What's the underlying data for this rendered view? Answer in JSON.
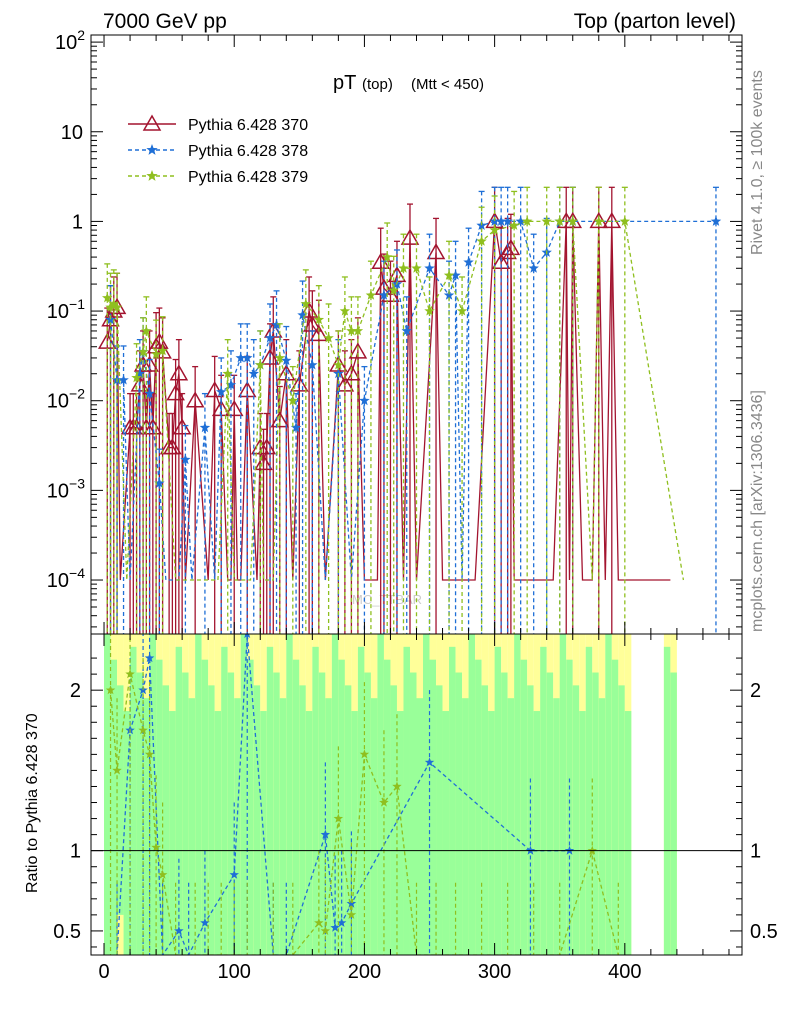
{
  "header": {
    "energy_label": "7000 GeV pp",
    "process_label": "Top (parton level)",
    "title_main": "pT",
    "title_sub": "(top)",
    "title_cut": "(Mtt < 450)"
  },
  "side": {
    "rivet_label": "Rivet 4.1.0, ≥ 100k events",
    "mcplots_label": "mcplots.cern.ch [arXiv:1306.3436]"
  },
  "watermark": "MC_TTBAR",
  "ratio_ylabel": "Ratio to Pythia 6.428 370",
  "colors": {
    "s370": "#a3142f",
    "s378": "#1f6fd6",
    "s379": "#8fbf1f",
    "band_yellow": "#ffff99",
    "band_green": "#99ff99"
  },
  "chart_data": [
    {
      "type": "line",
      "panel": "main",
      "title": "pT (top) (Mtt < 450)",
      "xlabel": "",
      "ylabel": "",
      "yscale": "log",
      "xlim": [
        -10,
        490
      ],
      "ylim": [
        2.5e-05,
        120
      ],
      "y_ticks": [
        {
          "value": 100,
          "base": "10",
          "exp": "2"
        },
        {
          "value": 10,
          "base": "10",
          "exp": ""
        },
        {
          "value": 1,
          "base": "1",
          "exp": ""
        },
        {
          "value": 0.1,
          "base": "10",
          "exp": "−1"
        },
        {
          "value": 0.01,
          "base": "10",
          "exp": "−2"
        },
        {
          "value": 0.001,
          "base": "10",
          "exp": "−3"
        },
        {
          "value": 0.0001,
          "base": "10",
          "exp": "−4"
        }
      ],
      "legend": [
        {
          "label": "Pythia 6.428 370",
          "color": "#a3142f",
          "marker": "triangle",
          "dash": "solid"
        },
        {
          "label": "Pythia 6.428 378",
          "color": "#1f6fd6",
          "marker": "star",
          "dash": "dashed"
        },
        {
          "label": "Pythia 6.428 379",
          "color": "#8fbf1f",
          "marker": "star",
          "dash": "dashed"
        }
      ],
      "legend_position": "top-left",
      "series": [
        {
          "name": "Pythia 6.428 370",
          "x": [
            2.5,
            5,
            7.5,
            10,
            12.5,
            20,
            22.5,
            25,
            27.5,
            30,
            32.5,
            35,
            37.5,
            40,
            42.5,
            45,
            50,
            52.5,
            55,
            57.5,
            60,
            62.5,
            70,
            80,
            85,
            90,
            95,
            97.5,
            100,
            102.5,
            105,
            110,
            117.5,
            120,
            122.5,
            125,
            127.5,
            130,
            135,
            140,
            145,
            150,
            157.5,
            160,
            165,
            170,
            180,
            185,
            190,
            195,
            200,
            210,
            212.5,
            215,
            220,
            225,
            230,
            235,
            240,
            255,
            260,
            265,
            270,
            285,
            300,
            305,
            310,
            312.5,
            315,
            320,
            335,
            345,
            355,
            357.5,
            360,
            367.5,
            375,
            380,
            385,
            390,
            395,
            435
          ],
          "values": [
            0.045,
            0.08,
            0.1,
            0.11,
            0.0001,
            0.005,
            0.005,
            0.005,
            0.015,
            0.025,
            0.005,
            0.025,
            0.005,
            0.04,
            0.045,
            0.035,
            0.003,
            0.003,
            0.012,
            0.02,
            0.005,
            0.0001,
            0.01,
            0.0001,
            0.013,
            0.008,
            0.0001,
            0.0001,
            0.008,
            0.0001,
            0.0001,
            0.013,
            0.0001,
            0.003,
            0.002,
            0.003,
            0.03,
            0.06,
            0.006,
            0.02,
            0.0001,
            0.015,
            0.1,
            0.07,
            0.055,
            0.0001,
            0.025,
            0.015,
            0.02,
            0.035,
            0.0001,
            0.0001,
            0.35,
            0.18,
            0.15,
            0.25,
            0.0001,
            0.65,
            0.0001,
            0.45,
            0.0001,
            0.0001,
            0.0001,
            0.0001,
            1,
            0.35,
            0.45,
            0.5,
            0.0001,
            0.0001,
            0.0001,
            0.0001,
            1,
            0.0001,
            1,
            0.0001,
            0.0001,
            1,
            0.0001,
            1,
            0.0001,
            0.0001
          ]
        },
        {
          "name": "Pythia 6.428 378",
          "x": [
            5,
            10,
            15,
            20,
            27.5,
            30,
            35,
            42.5,
            47.5,
            57.5,
            62.5,
            67.5,
            77.5,
            85,
            90,
            97.5,
            105,
            110,
            115,
            120,
            127.5,
            132.5,
            140,
            147.5,
            152.5,
            160,
            170,
            180,
            190,
            200,
            215,
            225,
            232.5,
            250,
            265,
            270,
            275,
            280,
            290,
            300,
            305,
            310,
            320,
            330,
            340,
            350,
            360,
            470
          ],
          "values": [
            0.08,
            0.017,
            0.017,
            0.0001,
            0.02,
            0.035,
            0.012,
            0.0012,
            0.0001,
            0.0001,
            0.0022,
            0.0001,
            0.005,
            0.0001,
            0.0125,
            0.015,
            0.03,
            0.03,
            0.02,
            0.025,
            0.05,
            0.07,
            0.028,
            0.005,
            0.09,
            0.025,
            0.0001,
            0.02,
            0.0001,
            0.01,
            0.15,
            0.2,
            0.06,
            0.3,
            0.15,
            0.25,
            0.0001,
            0.35,
            0.9,
            1,
            1,
            1,
            1,
            0.3,
            0.45,
            1,
            1,
            1
          ]
        },
        {
          "name": "Pythia 6.428 379",
          "x": [
            2.5,
            5,
            7.5,
            10,
            17.5,
            25,
            30,
            32.5,
            40,
            45,
            55,
            65,
            70,
            72.5,
            80,
            87.5,
            95,
            100,
            112.5,
            120,
            122.5,
            130,
            135,
            145,
            155,
            165,
            172.5,
            180,
            185,
            190,
            195,
            205,
            217.5,
            222.5,
            230,
            240,
            250,
            265,
            275,
            290,
            300,
            315,
            325,
            340,
            350,
            360,
            375,
            380,
            400,
            445
          ],
          "values": [
            0.14,
            0.11,
            0.12,
            0.11,
            0.0001,
            0.018,
            0.035,
            0.06,
            0.033,
            0.036,
            0.0001,
            0.0001,
            0.0001,
            0.0001,
            0.0001,
            0.0001,
            0.02,
            0.0001,
            0.0001,
            0.025,
            0.0001,
            0.0001,
            0.03,
            0.01,
            0.12,
            0.08,
            0.05,
            0.025,
            0.1,
            0.06,
            0.06,
            0.15,
            0.4,
            0.17,
            0.3,
            0.3,
            0.1,
            0.25,
            0.1,
            0.6,
            0.8,
            0.9,
            1,
            1,
            1,
            1,
            0.0001,
            1,
            1,
            0.0001
          ]
        }
      ]
    },
    {
      "type": "line",
      "panel": "ratio",
      "xlabel": "",
      "ylabel": "Ratio to Pythia 6.428 370",
      "xlim": [
        -10,
        490
      ],
      "ylim": [
        0.35,
        2.35
      ],
      "x_ticks": [
        "0",
        "100",
        "200",
        "300",
        "400"
      ],
      "y_ticks": [
        {
          "value": 2,
          "label": "2"
        },
        {
          "value": 1,
          "label": "1"
        },
        {
          "value": 0.5,
          "label": "0.5"
        }
      ],
      "reference_line": 1,
      "bands": [
        {
          "x": [
            0,
            5,
            10,
            15,
            20,
            25,
            30,
            35,
            40,
            45,
            50,
            55,
            60,
            65,
            70,
            75,
            80,
            85,
            90,
            95,
            100,
            105,
            110,
            115,
            120,
            125,
            130,
            135,
            140,
            145,
            150,
            155,
            160,
            165,
            170,
            175,
            180,
            185,
            190,
            195,
            200,
            205,
            210,
            215,
            220,
            225,
            230,
            235,
            240,
            245,
            250,
            255,
            260,
            265,
            270,
            275,
            280,
            285,
            290,
            295,
            300,
            305,
            310,
            315,
            320,
            325,
            330,
            335,
            340,
            345,
            350,
            355,
            360,
            365,
            370,
            375,
            380,
            385,
            390,
            395,
            400,
            430,
            435
          ],
          "yellow_low": [
            0.35,
            0.45,
            0.35,
            0.8,
            0.35,
            0.35,
            0.35,
            0.5,
            0.35,
            0.35,
            0.35,
            0.35,
            0.35,
            0.35,
            0.35,
            0.35,
            0.35,
            0.35,
            0.35,
            0.35,
            0.35,
            0.35,
            0.35,
            0.35,
            0.35,
            0.35,
            0.35,
            0.45,
            0.35,
            0.35,
            0.35,
            0.35,
            0.35,
            0.35,
            0.35,
            0.35,
            0.35,
            0.35,
            0.35,
            0.35,
            0.35,
            0.35,
            0.35,
            0.35,
            0.35,
            0.35,
            0.35,
            0.35,
            0.35,
            0.35,
            0.35,
            0.35,
            0.35,
            0.35,
            0.35,
            0.35,
            0.35,
            0.35,
            0.35,
            0.35,
            0.35,
            0.35,
            0.35,
            0.35,
            0.35,
            0.35,
            0.35,
            0.35,
            0.35,
            0.35,
            0.35,
            0.35,
            0.35,
            0.35,
            0.35,
            0.35,
            0.35,
            0.35,
            0.35,
            0.35,
            0.35,
            0.35,
            0.35
          ],
          "green_low": [
            0.35,
            0.35,
            0.6,
            0.35,
            0.35,
            0.35,
            0.35,
            0.35,
            0.35,
            0.35,
            0.35,
            0.35,
            0.35,
            0.35,
            0.35,
            0.35,
            0.35,
            0.35,
            0.35,
            0.35,
            0.35,
            0.35,
            0.35,
            0.35,
            0.35,
            0.35,
            0.35,
            0.35,
            0.35,
            0.35,
            0.35,
            0.35,
            0.35,
            0.35,
            0.35,
            0.35,
            0.35,
            0.35,
            0.35,
            0.35,
            0.35,
            0.35,
            0.35,
            0.35,
            0.35,
            0.35,
            0.35,
            0.35,
            0.35,
            0.35,
            0.35,
            0.35,
            0.35,
            0.35,
            0.35,
            0.35,
            0.35,
            0.35,
            0.35,
            0.35,
            0.35,
            0.35,
            0.35,
            0.35,
            0.35,
            0.35,
            0.35,
            0.35,
            0.35,
            0.35,
            0.35,
            0.35,
            0.35,
            0.35,
            0.35,
            0.35,
            0.35,
            0.35,
            0.35,
            0.35,
            0.35,
            0.35,
            0.35
          ]
        }
      ],
      "series": [
        {
          "name": "Pythia 6.428 378",
          "x": [
            10,
            20,
            30,
            35,
            45,
            57.5,
            65,
            77.5,
            100,
            110,
            130,
            140,
            170,
            177.5,
            182.5,
            190,
            250,
            327.5,
            357.5
          ],
          "values": [
            0.35,
            1.75,
            2.0,
            2.2,
            0.35,
            0.5,
            0.35,
            0.55,
            0.85,
            2.35,
            0.35,
            0.35,
            1.1,
            0.52,
            0.55,
            0.67,
            1.55,
            1.0,
            1.0
          ]
        },
        {
          "name": "Pythia 6.428 379",
          "x": [
            5,
            10,
            20,
            30,
            35,
            40,
            45,
            55,
            70,
            80,
            90,
            100,
            110,
            130,
            145,
            165,
            170,
            180,
            190,
            200,
            215,
            225,
            240,
            255,
            270,
            290,
            310,
            330,
            350,
            375,
            395
          ],
          "values": [
            2.0,
            1.5,
            2.1,
            1.75,
            1.6,
            1.02,
            0.85,
            0.35,
            0.35,
            0.35,
            0.35,
            0.35,
            0.35,
            0.35,
            0.35,
            0.55,
            0.5,
            1.2,
            0.6,
            1.6,
            1.3,
            1.4,
            0.35,
            0.35,
            0.35,
            0.35,
            0.35,
            0.35,
            0.35,
            1.0,
            0.35
          ]
        }
      ]
    }
  ]
}
